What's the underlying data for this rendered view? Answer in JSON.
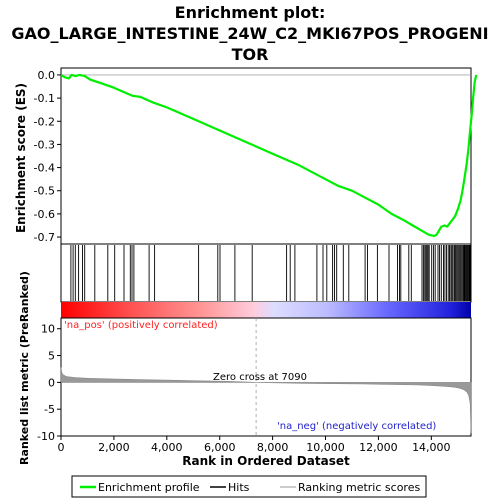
{
  "title_line1": "Enrichment plot:",
  "title_line2": "GAO_LARGE_INTESTINE_24W_C2_MKI67POS_PROGENI",
  "title_line3": "TOR",
  "es_axis_label": "Enrichment score (ES)",
  "metric_axis_label": "Ranked list metric (PreRanked)",
  "x_axis_label": "Rank in Ordered Dataset",
  "zero_cross_label": "Zero cross at 7090",
  "na_pos_label": "'na_pos' (positively correlated)",
  "na_neg_label": "'na_neg' (negatively correlated)",
  "legend": {
    "enrichment_profile": "Enrichment profile",
    "hits": "Hits",
    "ranking_metric": "Ranking metric scores"
  },
  "colors": {
    "enrichment_line": "#00ee00",
    "hits": "#000000",
    "metric_fill": "#999999",
    "pos_label": "#ff2222",
    "neg_label": "#2222cc"
  },
  "chart_data": {
    "type": "line",
    "x_range": [
      0,
      15500
    ],
    "x_ticks": [
      0,
      2000,
      4000,
      6000,
      8000,
      10000,
      12000,
      14000
    ],
    "x_tick_labels": [
      "0",
      "2,000",
      "4,000",
      "6,000",
      "8,000",
      "10,000",
      "12,000",
      "14,000"
    ],
    "zero_cross": 7090,
    "dataset_size": 14900,
    "es": {
      "ylim": [
        -0.73,
        0.03
      ],
      "y_ticks": [
        0.0,
        -0.1,
        -0.2,
        -0.3,
        -0.4,
        -0.5,
        -0.6,
        -0.7
      ],
      "y_tick_labels": [
        "0.0",
        "-0.1",
        "-0.2",
        "-0.3",
        "-0.4",
        "-0.5",
        "-0.6",
        "-0.7"
      ],
      "points": [
        [
          0,
          0.0
        ],
        [
          150,
          -0.01
        ],
        [
          300,
          -0.015
        ],
        [
          400,
          0.0
        ],
        [
          550,
          -0.005
        ],
        [
          700,
          0.0
        ],
        [
          900,
          -0.005
        ],
        [
          1100,
          -0.02
        ],
        [
          1500,
          -0.035
        ],
        [
          2000,
          -0.055
        ],
        [
          2500,
          -0.08
        ],
        [
          2700,
          -0.09
        ],
        [
          3000,
          -0.095
        ],
        [
          3500,
          -0.12
        ],
        [
          4000,
          -0.14
        ],
        [
          5000,
          -0.19
        ],
        [
          6000,
          -0.24
        ],
        [
          7000,
          -0.29
        ],
        [
          8000,
          -0.34
        ],
        [
          9000,
          -0.39
        ],
        [
          10000,
          -0.45
        ],
        [
          10500,
          -0.48
        ],
        [
          11000,
          -0.5
        ],
        [
          11500,
          -0.53
        ],
        [
          12000,
          -0.56
        ],
        [
          12500,
          -0.6
        ],
        [
          13000,
          -0.63
        ],
        [
          13300,
          -0.65
        ],
        [
          13600,
          -0.67
        ],
        [
          13900,
          -0.69
        ],
        [
          14100,
          -0.695
        ],
        [
          14200,
          -0.69
        ],
        [
          14300,
          -0.67
        ],
        [
          14380,
          -0.655
        ],
        [
          14500,
          -0.65
        ],
        [
          14600,
          -0.655
        ],
        [
          14700,
          -0.64
        ],
        [
          14800,
          -0.625
        ],
        [
          14900,
          -0.61
        ],
        [
          15000,
          -0.58
        ],
        [
          15100,
          -0.545
        ],
        [
          15180,
          -0.5
        ],
        [
          15260,
          -0.44
        ],
        [
          15340,
          -0.38
        ],
        [
          15400,
          -0.32
        ],
        [
          15460,
          -0.25
        ],
        [
          15520,
          -0.18
        ],
        [
          15580,
          -0.1
        ],
        [
          15640,
          -0.03
        ],
        [
          15700,
          0.0
        ]
      ]
    },
    "metric": {
      "ylim": [
        -10,
        12
      ],
      "y_ticks": [
        10,
        5,
        0,
        -5,
        -10
      ],
      "y_tick_labels": [
        "10",
        "5",
        "0",
        "-5",
        "-10"
      ],
      "points": [
        [
          0,
          2.8
        ],
        [
          30,
          1.8
        ],
        [
          80,
          1.4
        ],
        [
          200,
          1.1
        ],
        [
          500,
          0.9
        ],
        [
          1000,
          0.75
        ],
        [
          2000,
          0.6
        ],
        [
          3000,
          0.5
        ],
        [
          4000,
          0.4
        ],
        [
          5000,
          0.3
        ],
        [
          6000,
          0.2
        ],
        [
          7090,
          0.0
        ],
        [
          8000,
          -0.1
        ],
        [
          9000,
          -0.2
        ],
        [
          10000,
          -0.25
        ],
        [
          11000,
          -0.3
        ],
        [
          12000,
          -0.4
        ],
        [
          13000,
          -0.5
        ],
        [
          13500,
          -0.6
        ],
        [
          14000,
          -0.75
        ],
        [
          14300,
          -0.9
        ],
        [
          14500,
          -1.1
        ],
        [
          14650,
          -1.4
        ],
        [
          14750,
          -1.8
        ],
        [
          14820,
          -2.5
        ],
        [
          14870,
          -4.0
        ],
        [
          14900,
          -9.5
        ]
      ]
    },
    "hits": [
      360,
      440,
      520,
      640,
      780,
      860,
      1230,
      1700,
      1950,
      2290,
      2520,
      2580,
      2650,
      3200,
      3400,
      5000,
      5700,
      5780,
      6320,
      6950,
      8200,
      8330,
      8500,
      9300,
      9520,
      9660,
      9870,
      9940,
      10020,
      10260,
      10460,
      11050,
      11140,
      11500,
      11920,
      12230,
      12300,
      12350,
      12640,
      12730,
      13120,
      13170,
      13220,
      13260,
      13300,
      13340,
      13380,
      13470,
      13540,
      13600,
      13700,
      13760,
      13820,
      13900,
      13950,
      14010,
      14070,
      14120,
      14170,
      14210,
      14250,
      14300,
      14340,
      14380,
      14420,
      14460,
      14500,
      14540,
      14580,
      14620,
      14650,
      14680,
      14710,
      14740,
      14770,
      14800,
      14830,
      14860,
      14880,
      14900
    ]
  }
}
